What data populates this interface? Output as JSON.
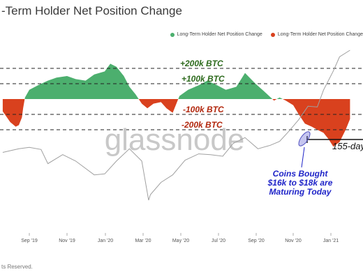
{
  "title": "-Term Holder Net Position Change",
  "footer": "ts Reserved.",
  "watermark": "glassnode",
  "colors": {
    "positive": "#4caf6e",
    "negative": "#d9411e",
    "price_line": "#a0a0a0",
    "annotation_green": "#2e6b1e",
    "annotation_red": "#b2270d",
    "annotation_blue": "#1f24c8"
  },
  "legend": [
    {
      "label": "Long-Term Holder Net Position Change",
      "color": "#4caf6e"
    },
    {
      "label": "Long-Term Holder Net Position Change",
      "color": "#d9411e"
    }
  ],
  "annotations": {
    "plus200": "+200k BTC",
    "plus100": "+100k BTC",
    "minus100": "-100k BTC",
    "minus200": "-200k BTC",
    "days": "155-day",
    "coins": [
      "Coins Bought",
      "$16k to $18k are",
      "Maturing Today"
    ]
  },
  "chart_data": {
    "type": "area",
    "title": "-Term Holder Net Position Change",
    "xlabel": "",
    "ylabel": "",
    "x_ticks": [
      "Sep '19",
      "Nov '19",
      "Jan '20",
      "Mar '20",
      "May '20",
      "Jul '20",
      "Sep '20",
      "Nov '20",
      "Jan '21"
    ],
    "reference_lines_k": [
      200,
      100,
      -100,
      -200
    ],
    "ylim_k": [
      -330,
      250
    ],
    "series": [
      {
        "name": "Long-Term Holder Net Position Change",
        "unit": "k BTC",
        "x": [
          "2019-07-20",
          "2019-08-01",
          "2019-08-10",
          "2019-08-15",
          "2019-08-20",
          "2019-08-22",
          "2019-08-25",
          "2019-09-01",
          "2019-09-15",
          "2019-10-01",
          "2019-10-15",
          "2019-11-01",
          "2019-11-15",
          "2019-12-01",
          "2019-12-15",
          "2020-01-01",
          "2020-01-10",
          "2020-01-20",
          "2020-02-01",
          "2020-02-10",
          "2020-02-20",
          "2020-03-01",
          "2020-03-10",
          "2020-03-20",
          "2020-04-01",
          "2020-04-10",
          "2020-04-20",
          "2020-05-01",
          "2020-05-15",
          "2020-06-01",
          "2020-06-15",
          "2020-07-01",
          "2020-07-15",
          "2020-08-01",
          "2020-08-15",
          "2020-09-01",
          "2020-09-15",
          "2020-10-01",
          "2020-10-10",
          "2020-10-20",
          "2020-11-01",
          "2020-11-10",
          "2020-11-20",
          "2020-12-01",
          "2020-12-10",
          "2020-12-20",
          "2020-12-28",
          "2021-01-05",
          "2021-01-15",
          "2021-01-25",
          "2021-02-01"
        ],
        "values": [
          -80,
          -150,
          -180,
          -170,
          -120,
          -60,
          10,
          60,
          90,
          120,
          140,
          150,
          130,
          120,
          160,
          180,
          230,
          210,
          150,
          80,
          30,
          -30,
          -60,
          -30,
          -20,
          -60,
          -90,
          20,
          60,
          90,
          120,
          90,
          60,
          80,
          170,
          100,
          50,
          -10,
          10,
          -10,
          -40,
          -100,
          -160,
          -180,
          -200,
          -220,
          -260,
          -310,
          -280,
          -200,
          -130
        ]
      }
    ],
    "price_line": {
      "name": "BTC Price",
      "x": [
        "2019-07-20",
        "2019-08-15",
        "2019-09-01",
        "2019-09-20",
        "2019-10-01",
        "2019-10-25",
        "2019-11-15",
        "2019-12-15",
        "2020-01-01",
        "2020-01-20",
        "2020-02-10",
        "2020-03-01",
        "2020-03-12",
        "2020-03-15",
        "2020-04-01",
        "2020-04-20",
        "2020-05-10",
        "2020-06-01",
        "2020-06-20",
        "2020-07-10",
        "2020-07-27",
        "2020-08-15",
        "2020-09-05",
        "2020-09-25",
        "2020-10-10",
        "2020-10-25",
        "2020-11-10",
        "2020-11-25",
        "2020-12-10",
        "2020-12-20",
        "2021-01-05",
        "2021-01-15",
        "2021-02-01"
      ],
      "values_k": [
        9.7,
        10.2,
        10.4,
        10.1,
        8.3,
        9.4,
        8.6,
        7.1,
        7.2,
        8.6,
        10.2,
        8.6,
        5.0,
        5.4,
        6.4,
        7.1,
        8.7,
        9.5,
        9.4,
        9.2,
        11.0,
        11.9,
        10.2,
        10.7,
        11.3,
        13.0,
        15.3,
        18.4,
        18.2,
        23.0,
        30.0,
        36.5,
        40.0
      ]
    }
  }
}
